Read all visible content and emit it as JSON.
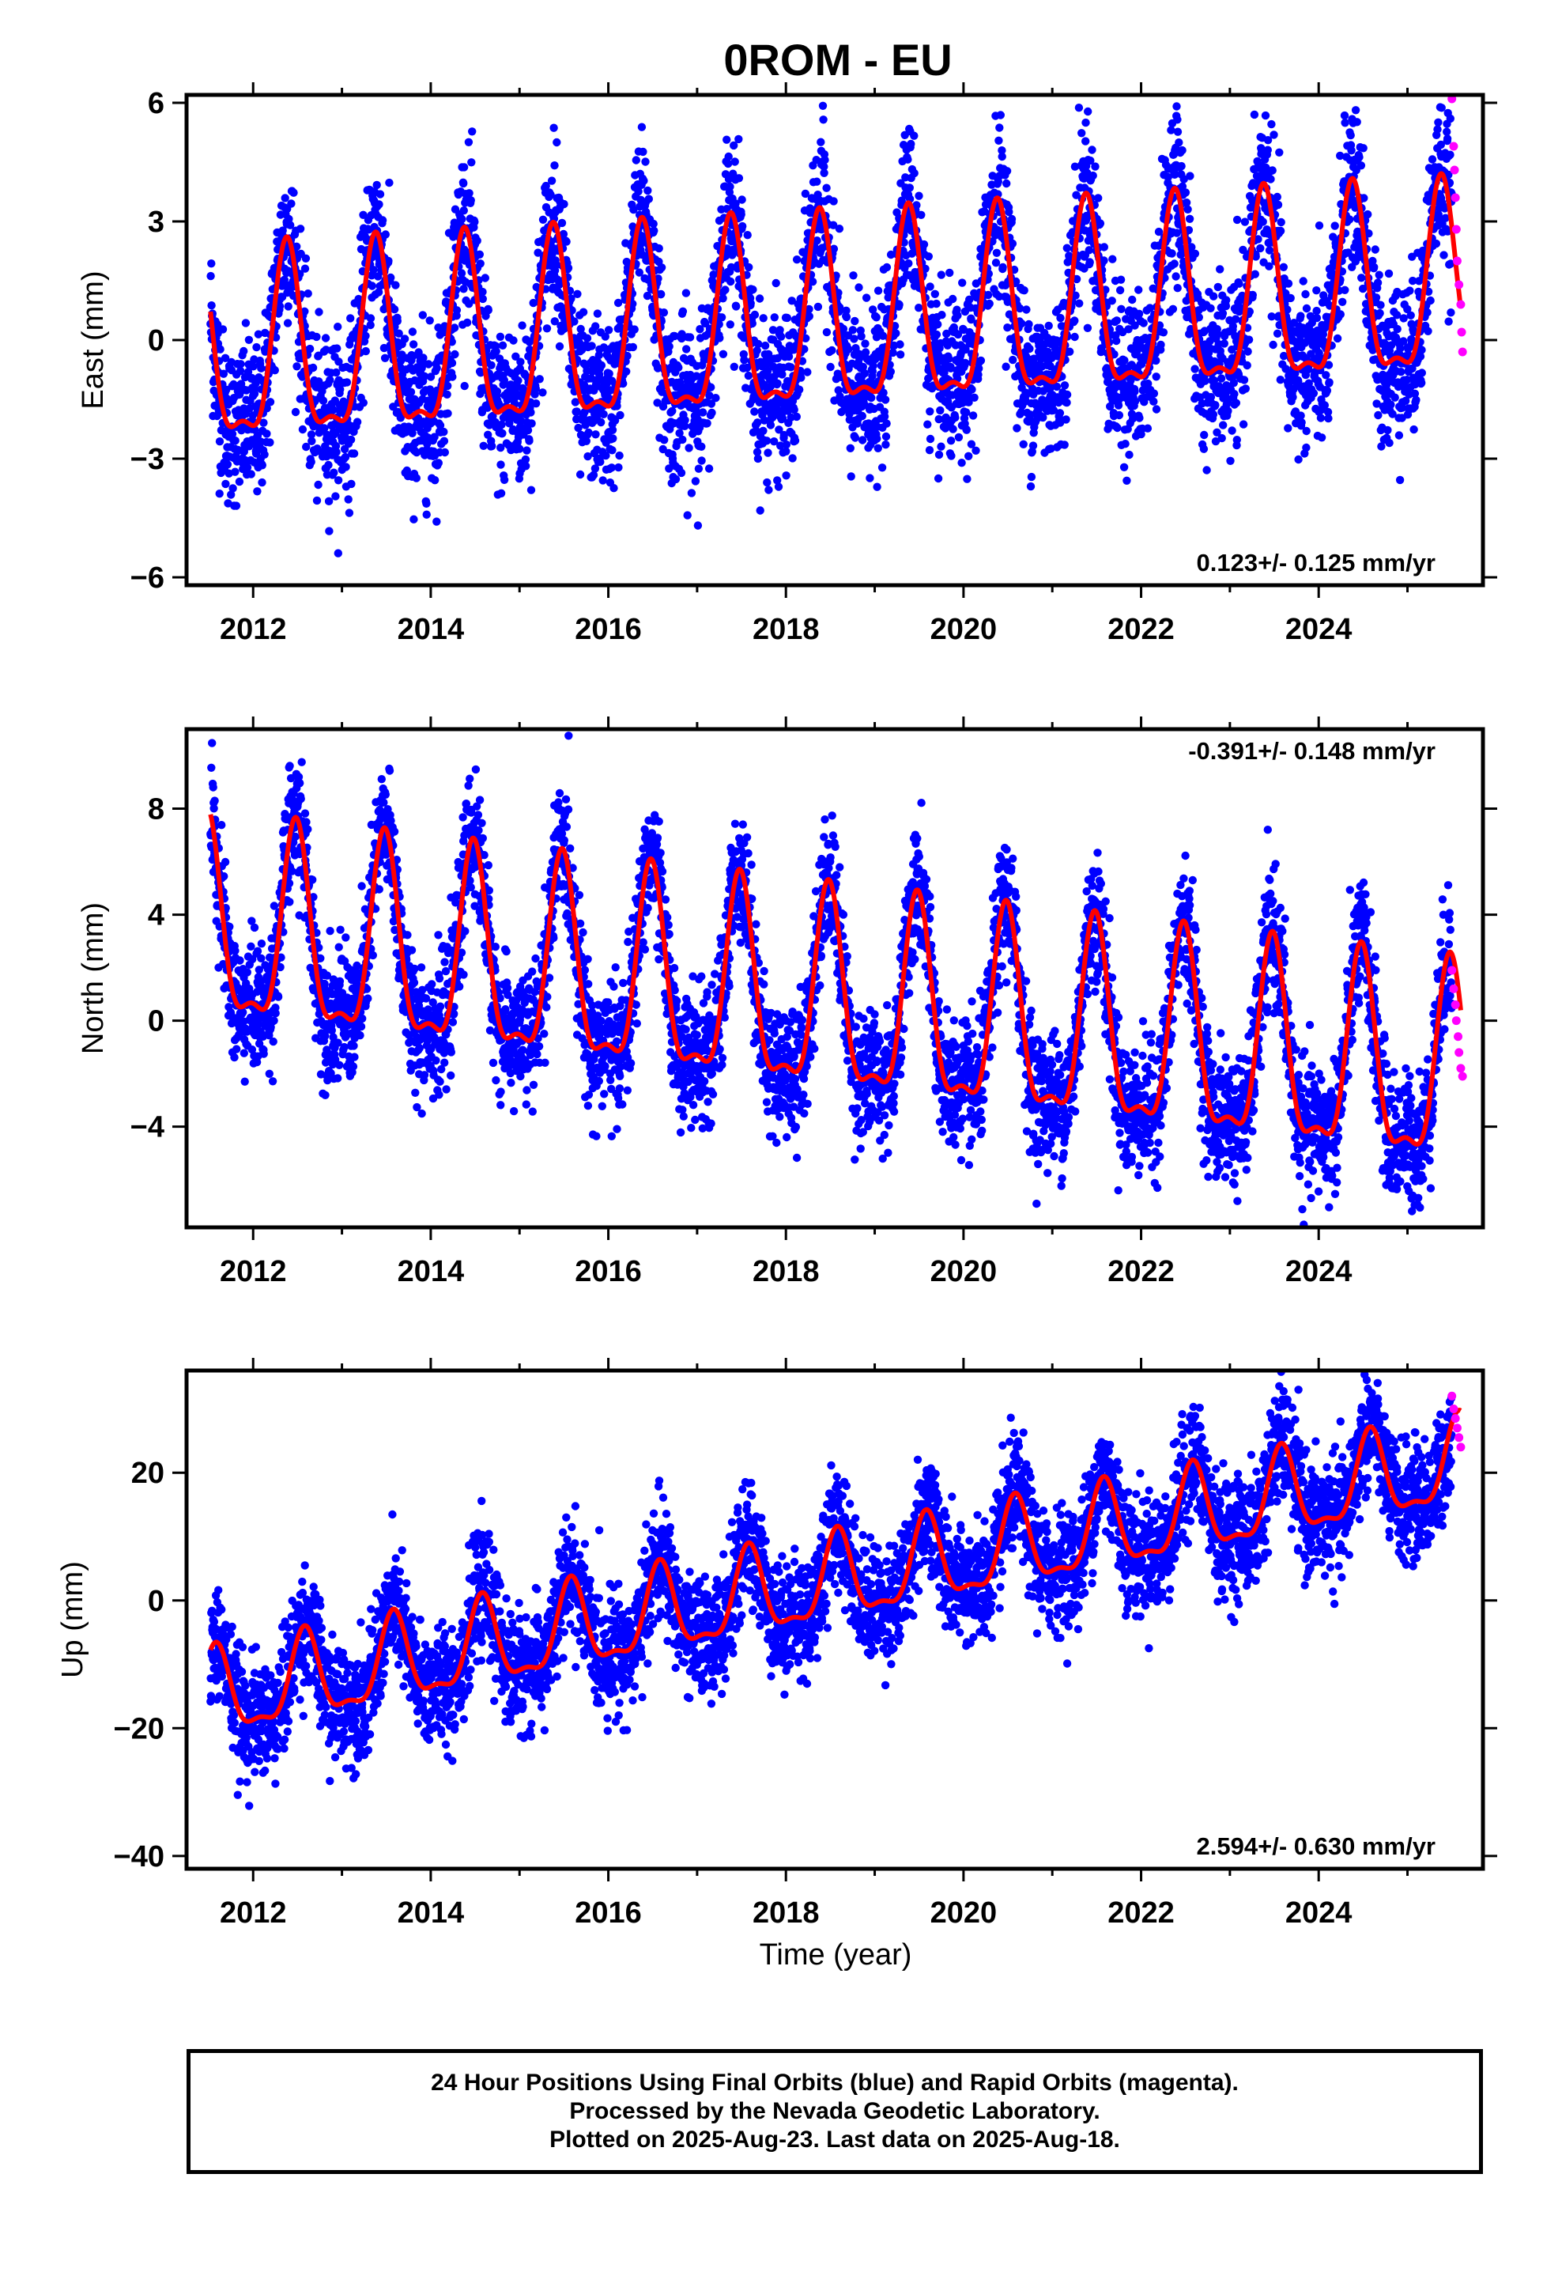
{
  "title": "0ROM - EU",
  "colors": {
    "final": "#0000ff",
    "rapid": "#ff00ff",
    "model": "#ff0000",
    "frame": "#000000"
  },
  "xlabel": "Time (year)",
  "footer": {
    "line1": "24 Hour Positions Using Final Orbits (blue) and Rapid Orbits (magenta).",
    "line2": "Processed by the Nevada Geodetic Laboratory.",
    "line3": "Plotted on 2025-Aug-23. Last data on 2025-Aug-18."
  },
  "chart_data": [
    {
      "type": "scatter",
      "ylabel": "East (mm)",
      "xlim": [
        2011.25,
        2025.85
      ],
      "ylim": [
        -6.2,
        6.2
      ],
      "xticks": [
        "2012",
        "2014",
        "2016",
        "2018",
        "2020",
        "2022",
        "2024"
      ],
      "yticks": [
        "6",
        "3",
        "0",
        "−3",
        "−6"
      ],
      "rate": "0.123+/- 0.125 mm/yr",
      "rate_position": "bottom-right",
      "model": {
        "amplitude": 2.3,
        "trend_mm_per_yr": 0.123,
        "offset": -0.6,
        "peak_phase": 0.38,
        "noise_sd": 1.0
      },
      "series": [
        {
          "values": [
            [
              2011.55,
              -0.5
            ],
            [
              2011.75,
              -2.0
            ],
            [
              2011.95,
              -2.6
            ],
            [
              2012.15,
              -1.5
            ],
            [
              2012.35,
              1.6
            ],
            [
              2012.55,
              0.4
            ],
            [
              2012.8,
              -2.4
            ],
            [
              2013.1,
              -1.4
            ],
            [
              2013.35,
              1.7
            ],
            [
              2013.6,
              -0.2
            ],
            [
              2013.85,
              -2.3
            ],
            [
              2014.35,
              1.8
            ],
            [
              2014.85,
              -2.2
            ],
            [
              2015.35,
              2.0
            ],
            [
              2015.85,
              -2.1
            ],
            [
              2016.35,
              2.1
            ],
            [
              2016.85,
              -2.0
            ],
            [
              2017.35,
              2.2
            ],
            [
              2017.85,
              -1.8
            ],
            [
              2018.35,
              2.3
            ],
            [
              2018.85,
              -1.7
            ],
            [
              2019.35,
              2.4
            ],
            [
              2019.85,
              -1.6
            ],
            [
              2020.35,
              2.6
            ],
            [
              2020.85,
              -1.4
            ],
            [
              2021.35,
              2.7
            ],
            [
              2021.85,
              -1.3
            ],
            [
              2022.35,
              2.8
            ],
            [
              2022.85,
              -1.1
            ],
            [
              2023.35,
              2.9
            ],
            [
              2023.85,
              -1.0
            ],
            [
              2024.35,
              3.0
            ],
            [
              2024.85,
              -0.9
            ],
            [
              2025.35,
              3.1
            ],
            [
              2025.55,
              0.2
            ]
          ]
        },
        {
          "values": [
            [
              2025.5,
              6.1
            ],
            [
              2025.52,
              4.9
            ],
            [
              2025.53,
              4.3
            ],
            [
              2025.54,
              3.6
            ],
            [
              2025.55,
              2.8
            ],
            [
              2025.56,
              2.0
            ],
            [
              2025.58,
              1.4
            ],
            [
              2025.6,
              0.9
            ],
            [
              2025.61,
              0.2
            ],
            [
              2025.62,
              -0.3
            ]
          ]
        }
      ]
    },
    {
      "type": "scatter",
      "ylabel": "North (mm)",
      "xlim": [
        2011.25,
        2025.85
      ],
      "ylim": [
        -7.8,
        11
      ],
      "xticks": [
        "2012",
        "2014",
        "2016",
        "2018",
        "2020",
        "2022",
        "2024"
      ],
      "yticks": [
        "8",
        "4",
        "0",
        "−4"
      ],
      "rate": "-0.391+/- 0.148 mm/yr",
      "rate_position": "top-right",
      "model": {
        "amplitude": 3.6,
        "trend_mm_per_yr": -0.391,
        "offset": 3.2,
        "peak_phase": 0.48,
        "noise_sd": 1.2
      },
      "series": [
        {
          "values": [
            [
              2011.55,
              6.8
            ],
            [
              2011.75,
              3.0
            ],
            [
              2012.05,
              -0.4
            ],
            [
              2012.45,
              6.7
            ],
            [
              2012.75,
              1.5
            ],
            [
              2013.1,
              -1.0
            ],
            [
              2013.45,
              6.3
            ],
            [
              2013.8,
              1.0
            ],
            [
              2014.1,
              -1.4
            ],
            [
              2014.45,
              6.0
            ],
            [
              2015.1,
              -1.8
            ],
            [
              2015.45,
              5.6
            ],
            [
              2016.1,
              -2.1
            ],
            [
              2016.45,
              5.2
            ],
            [
              2017.1,
              -2.5
            ],
            [
              2017.45,
              4.8
            ],
            [
              2018.1,
              -2.9
            ],
            [
              2018.45,
              4.5
            ],
            [
              2019.1,
              -3.3
            ],
            [
              2019.45,
              4.0
            ],
            [
              2020.1,
              -3.6
            ],
            [
              2020.45,
              3.7
            ],
            [
              2021.1,
              -4.0
            ],
            [
              2021.45,
              3.3
            ],
            [
              2022.1,
              -4.4
            ],
            [
              2022.45,
              2.9
            ],
            [
              2023.1,
              -4.8
            ],
            [
              2023.45,
              2.5
            ],
            [
              2024.1,
              -5.2
            ],
            [
              2024.45,
              2.1
            ],
            [
              2025.1,
              -5.6
            ],
            [
              2025.5,
              1.7
            ]
          ]
        },
        {
          "values": [
            [
              2025.5,
              1.9
            ],
            [
              2025.52,
              1.2
            ],
            [
              2025.54,
              0.6
            ],
            [
              2025.55,
              0.0
            ],
            [
              2025.57,
              -0.6
            ],
            [
              2025.58,
              -1.2
            ],
            [
              2025.6,
              -1.8
            ],
            [
              2025.62,
              -2.1
            ]
          ]
        }
      ]
    },
    {
      "type": "scatter",
      "ylabel": "Up (mm)",
      "xlim": [
        2011.25,
        2025.85
      ],
      "ylim": [
        -42,
        36
      ],
      "xticks": [
        "2012",
        "2014",
        "2016",
        "2018",
        "2020",
        "2022",
        "2024"
      ],
      "yticks": [
        "20",
        "0",
        "−20",
        "−40"
      ],
      "rate": "2.594+/- 0.630 mm/yr",
      "rate_position": "bottom-right",
      "model": {
        "amplitude": 6.5,
        "trend_mm_per_yr": 2.594,
        "offset": -15.5,
        "peak_phase": 0.58,
        "noise_sd": 4.5
      },
      "series": [
        {
          "values": [
            [
              2011.55,
              -11.0
            ],
            [
              2012.05,
              -22.0
            ],
            [
              2012.6,
              -8.0
            ],
            [
              2013.1,
              -20.0
            ],
            [
              2013.6,
              -5.5
            ],
            [
              2014.1,
              -17.5
            ],
            [
              2014.6,
              -3.0
            ],
            [
              2015.1,
              -15.0
            ],
            [
              2015.6,
              0.0
            ],
            [
              2016.1,
              -12.5
            ],
            [
              2016.6,
              2.5
            ],
            [
              2017.1,
              -10.0
            ],
            [
              2017.6,
              5.0
            ],
            [
              2018.1,
              -7.0
            ],
            [
              2018.6,
              7.5
            ],
            [
              2019.1,
              -4.5
            ],
            [
              2019.6,
              10.0
            ],
            [
              2020.1,
              -2.0
            ],
            [
              2020.6,
              13.0
            ],
            [
              2021.1,
              0.5
            ],
            [
              2021.6,
              15.5
            ],
            [
              2022.1,
              3.5
            ],
            [
              2022.6,
              18.0
            ],
            [
              2023.1,
              6.0
            ],
            [
              2023.6,
              20.5
            ],
            [
              2024.1,
              8.5
            ],
            [
              2024.6,
              23.0
            ],
            [
              2025.1,
              11.0
            ],
            [
              2025.55,
              26.0
            ]
          ]
        },
        {
          "values": [
            [
              2025.5,
              32.0
            ],
            [
              2025.52,
              30.0
            ],
            [
              2025.54,
              28.5
            ],
            [
              2025.56,
              27.0
            ],
            [
              2025.58,
              25.5
            ],
            [
              2025.6,
              24.0
            ]
          ]
        }
      ]
    }
  ]
}
